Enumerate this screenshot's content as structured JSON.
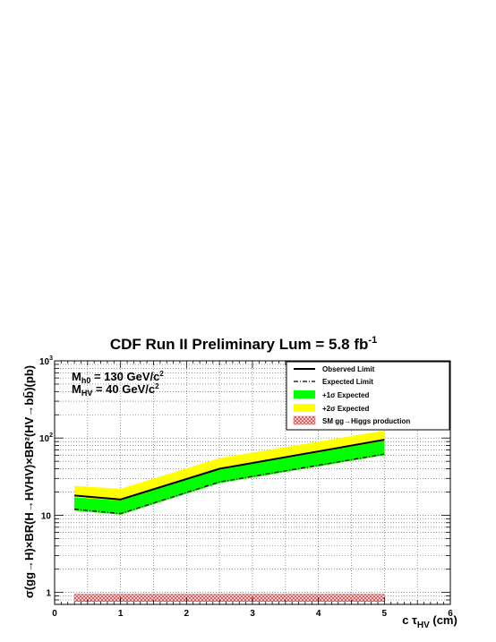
{
  "chart_data": {
    "type": "area",
    "title": "CDF Run II Preliminary   Lum = 5.8 fb",
    "title_sup": "-1",
    "xlabel": "c τ",
    "xlabel_sub": "HV",
    "xlabel_unit": " (cm)",
    "ylabel": "σ(gg→H)×BR(H→HVHV)×BR²(HV→bb̄)(pb)",
    "xlim": [
      0,
      6
    ],
    "ylim": [
      0.7,
      1000
    ],
    "yscale": "log",
    "grid": true,
    "x_ticks": [
      "0",
      "1",
      "2",
      "3",
      "4",
      "5",
      "6"
    ],
    "y_ticks": [
      {
        "base": "1",
        "exp": ""
      },
      {
        "base": "10",
        "exp": ""
      },
      {
        "base": "10",
        "exp": "2"
      },
      {
        "base": "10",
        "exp": "3"
      }
    ],
    "annotation": [
      {
        "pre": "M",
        "sub": "h0",
        "mid": " = 130 GeV/c",
        "sup": "2"
      },
      {
        "pre": "M",
        "sub": "HV",
        "mid": " = 40 GeV/c",
        "sup": "2"
      }
    ],
    "legend_position": "top-right",
    "legend": {
      "observed": "Observed Limit",
      "expected": "Expected Limit",
      "band1": "+1σ Expected",
      "band2": "+2σ Expected",
      "sm": "SM gg→Higgs production"
    },
    "x": [
      0.3,
      1.0,
      2.5,
      5.0
    ],
    "observed": [
      18,
      16,
      40,
      95
    ],
    "expected": [
      12,
      10.5,
      27,
      62
    ],
    "band1_low": [
      11.5,
      10.2,
      26,
      60
    ],
    "band1_high": [
      17,
      15.5,
      39,
      92
    ],
    "band2_high": [
      24,
      22,
      55,
      125
    ],
    "sm_production": 0.85,
    "colors": {
      "band1": "#00ff00",
      "band2": "#ffff00",
      "sm": "#e05050",
      "line": "#000000"
    }
  }
}
